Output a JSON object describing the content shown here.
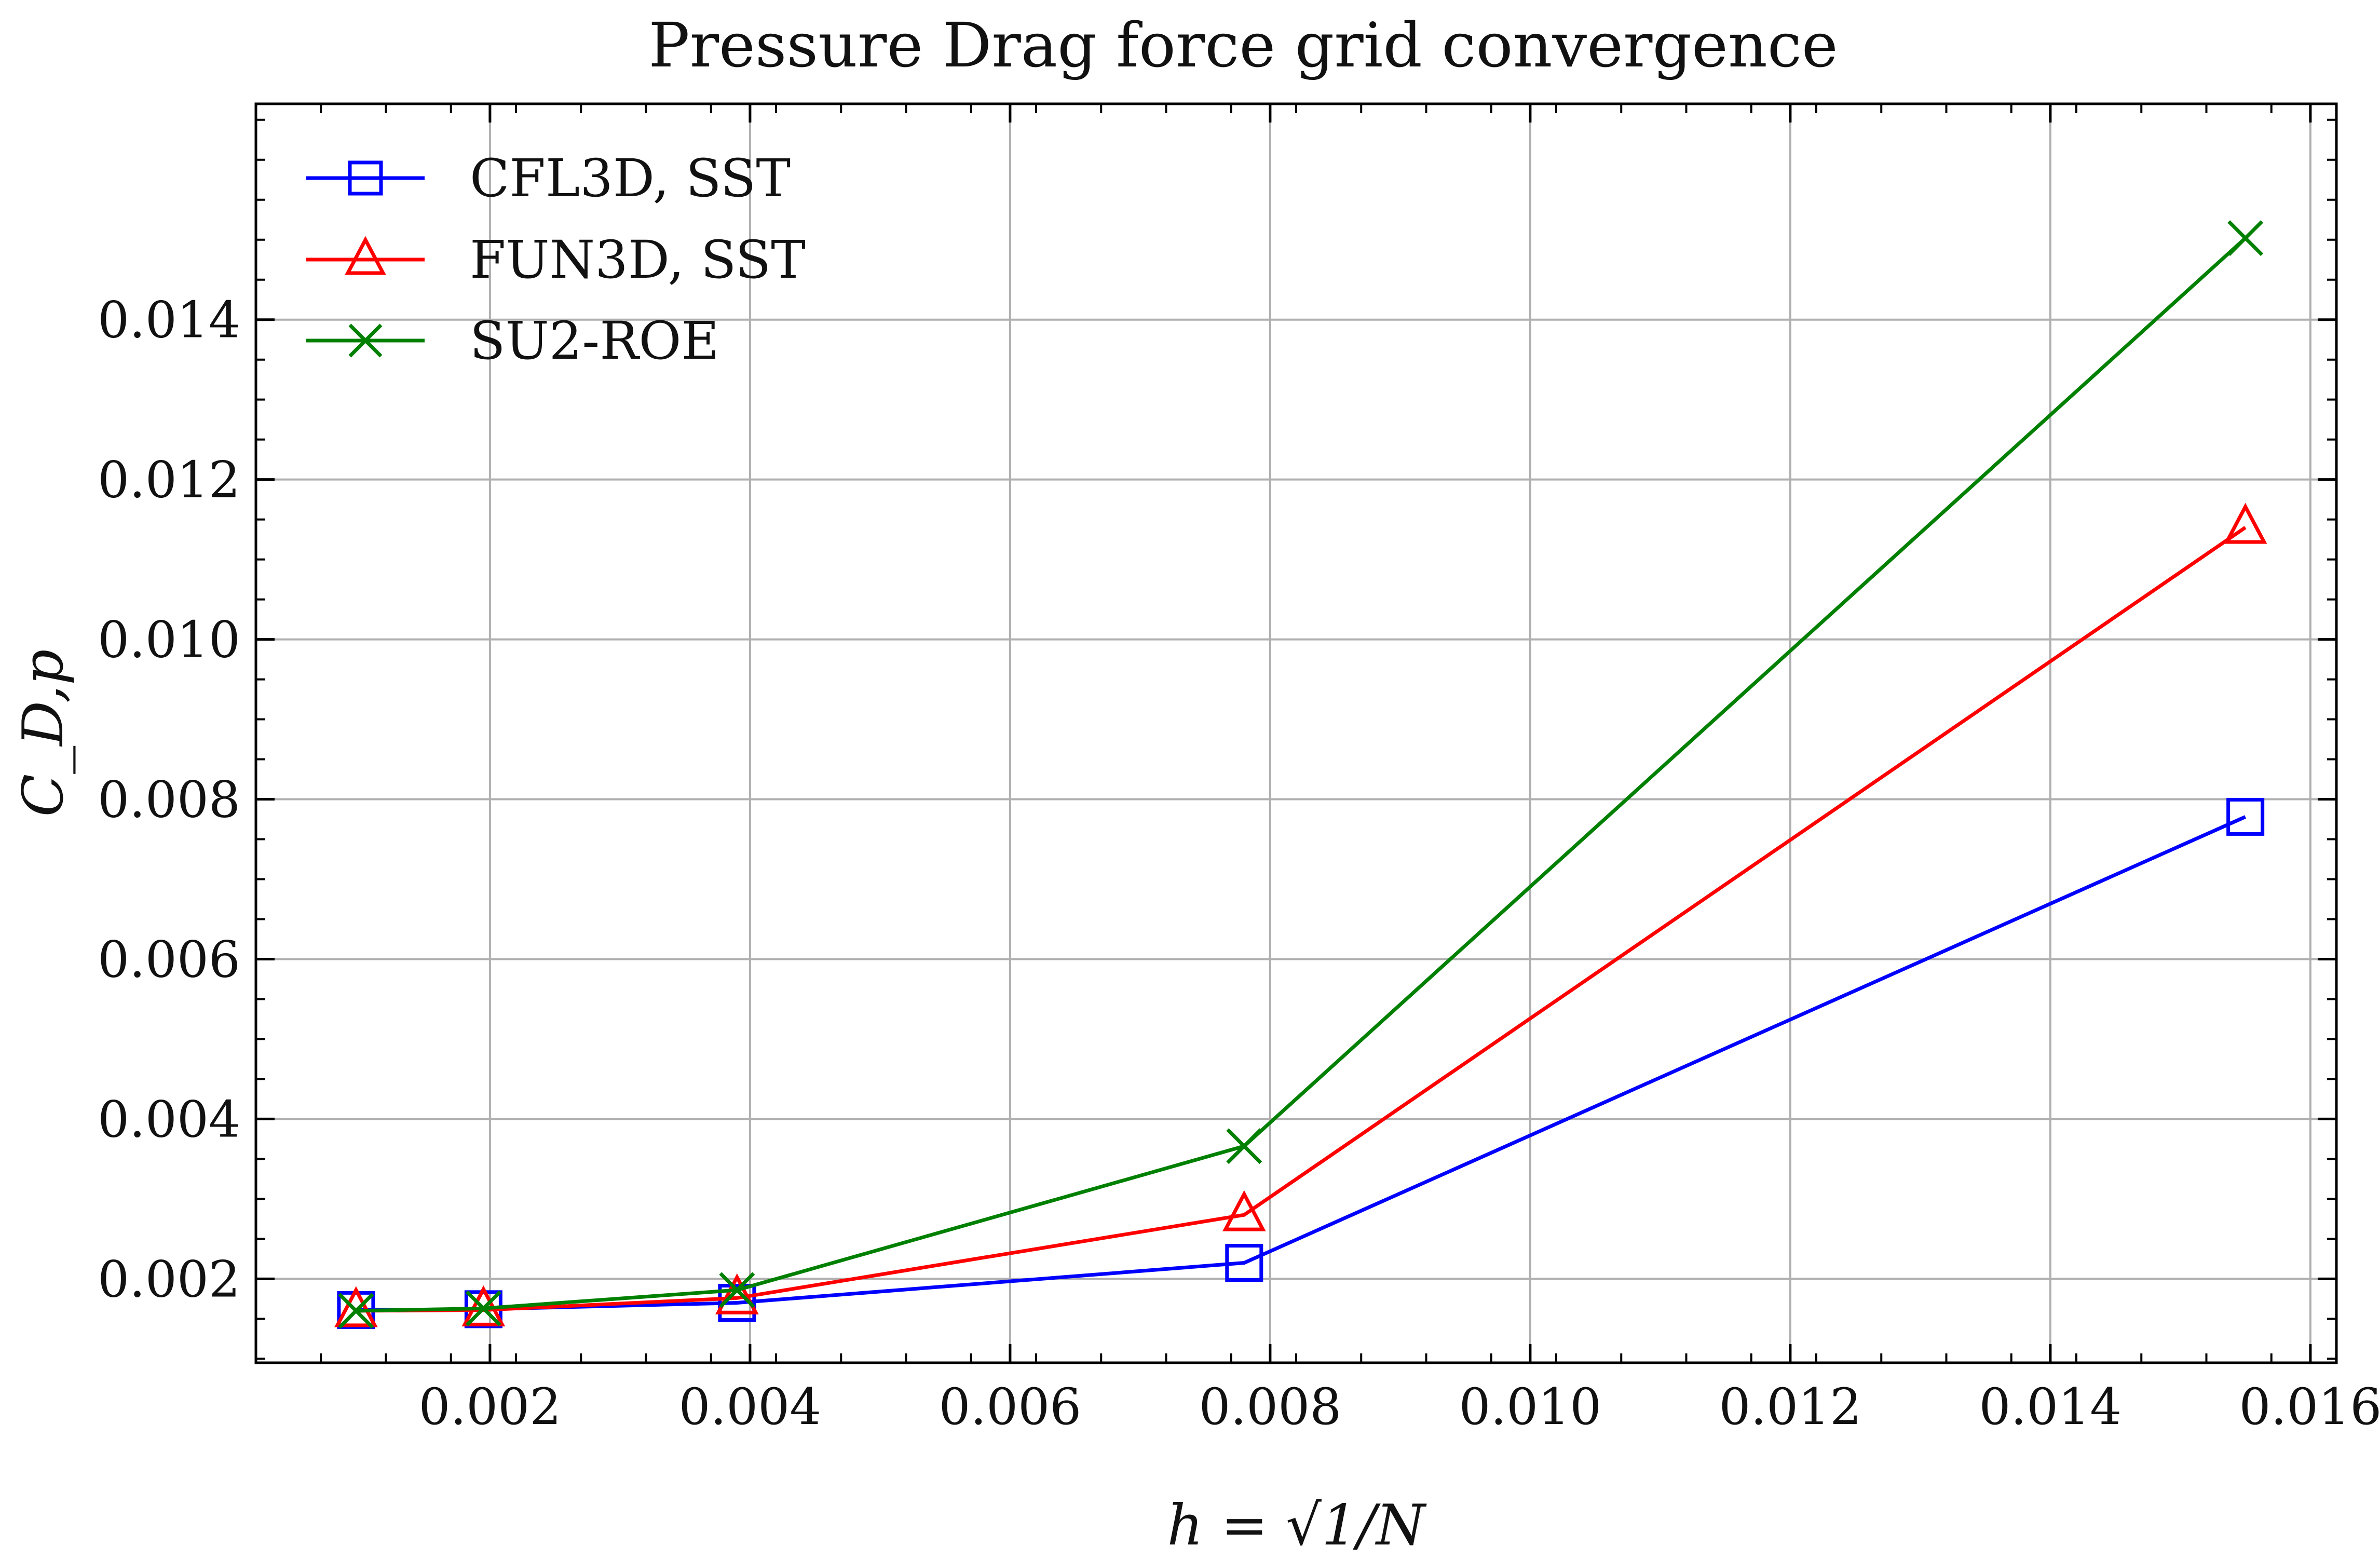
{
  "chart_data": {
    "type": "line",
    "title": "Pressure Drag force grid convergence",
    "xlabel": "h = √1/N",
    "ylabel": "C_D,p",
    "xlim": [
      0.0002,
      0.0162
    ],
    "ylim": [
      0.00095,
      0.0167
    ],
    "xticks": [
      0.002,
      0.004,
      0.006,
      0.008,
      0.01,
      0.012,
      0.014,
      0.016
    ],
    "xtick_labels": [
      "0.002",
      "0.004",
      "0.006",
      "0.008",
      "0.010",
      "0.012",
      "0.014",
      "0.016"
    ],
    "yticks": [
      0.002,
      0.004,
      0.006,
      0.008,
      0.01,
      0.012,
      0.014
    ],
    "ytick_labels": [
      "0.002",
      "0.004",
      "0.006",
      "0.008",
      "0.010",
      "0.012",
      "0.014"
    ],
    "grid": true,
    "legend_position": "top-left",
    "x": [
      0.00097,
      0.00195,
      0.0039,
      0.0078,
      0.0155
    ],
    "series": [
      {
        "name": "CFL3D, SST",
        "color": "#0000ff",
        "marker": "square",
        "values": [
          0.00161,
          0.00162,
          0.0017,
          0.0022,
          0.00778
        ]
      },
      {
        "name": "FUN3D, SST",
        "color": "#ff0000",
        "marker": "triangle",
        "values": [
          0.0016,
          0.00161,
          0.00176,
          0.0028,
          0.0114
        ]
      },
      {
        "name": "SU2-ROE",
        "color": "#008000",
        "marker": "x",
        "values": [
          0.0016,
          0.00163,
          0.00186,
          0.00366,
          0.01502
        ]
      }
    ]
  }
}
